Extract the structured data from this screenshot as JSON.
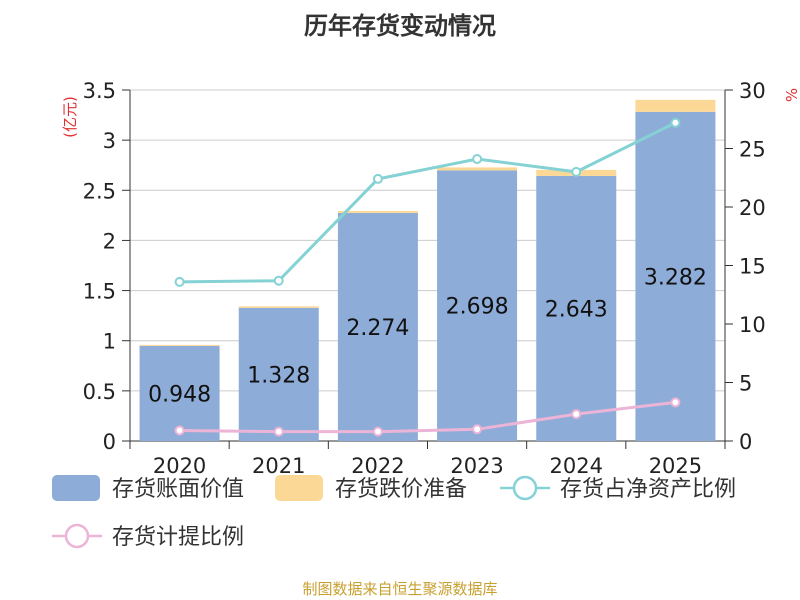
{
  "chart_data": {
    "type": "bar",
    "title": "历年存货变动情况",
    "categories": [
      "2020",
      "2021",
      "2022",
      "2023",
      "2024",
      "2025"
    ],
    "left_axis": {
      "label": "(亿元)",
      "ylim": [
        0,
        3.5
      ],
      "ticks": [
        "0",
        "0.5",
        "1",
        "1.5",
        "2",
        "2.5",
        "3",
        "3.5"
      ]
    },
    "right_axis": {
      "label": "%",
      "ylim": [
        0,
        30
      ],
      "ticks": [
        "0",
        "5",
        "10",
        "15",
        "20",
        "25",
        "30"
      ]
    },
    "series": [
      {
        "name": "存货账面价值",
        "kind": "bar",
        "axis": "left",
        "color": "#8eacd8",
        "values": [
          0.948,
          1.328,
          2.274,
          2.698,
          2.643,
          3.282
        ],
        "labels": [
          "0.948",
          "1.328",
          "2.274",
          "2.698",
          "2.643",
          "3.282"
        ]
      },
      {
        "name": "存货跌价准备",
        "kind": "bar-stacked",
        "axis": "left",
        "color": "#fcd896",
        "values": [
          0.01,
          0.015,
          0.02,
          0.03,
          0.06,
          0.12
        ]
      },
      {
        "name": "存货占净资产比例",
        "kind": "line",
        "axis": "right",
        "color": "#85d2d4",
        "values": [
          13.6,
          13.7,
          22.4,
          24.1,
          23.0,
          27.2
        ]
      },
      {
        "name": "存货计提比例",
        "kind": "line",
        "axis": "right",
        "color": "#ecb4d6",
        "values": [
          0.9,
          0.8,
          0.8,
          1.0,
          2.3,
          3.3
        ]
      }
    ],
    "grid": true,
    "legend_position": "bottom"
  },
  "source": "制图数据来自恒生聚源数据库"
}
